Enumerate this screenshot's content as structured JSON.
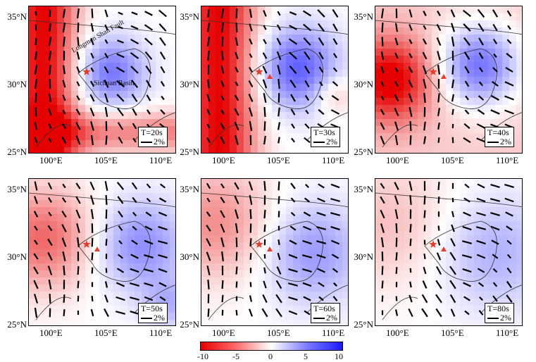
{
  "panels": [
    {
      "period": "T=20s",
      "scale": "2%"
    },
    {
      "period": "T=30s",
      "scale": "2%"
    },
    {
      "period": "T=40s",
      "scale": "2%"
    },
    {
      "period": "T=50s",
      "scale": "2%"
    },
    {
      "period": "T=60s",
      "scale": "2%"
    },
    {
      "period": "T=80s",
      "scale": "2%"
    }
  ],
  "axes": {
    "lat_ticks": [
      "35°N",
      "30°N",
      "25°N"
    ],
    "lon_ticks": [
      "100°E",
      "105°E",
      "110°E"
    ]
  },
  "annotations": {
    "fault": "Longmen Shan Fault",
    "basin": "Sichuan Basin"
  },
  "colorbar": {
    "ticks": [
      "-10",
      "-5",
      "0",
      "5",
      "10"
    ],
    "colors": {
      "negative": "#e60000",
      "zero": "#ffffff",
      "positive": "#1a1aff"
    }
  },
  "markers": {
    "epicenter": "star",
    "station": "triangle",
    "color": "#e63c2a"
  }
}
